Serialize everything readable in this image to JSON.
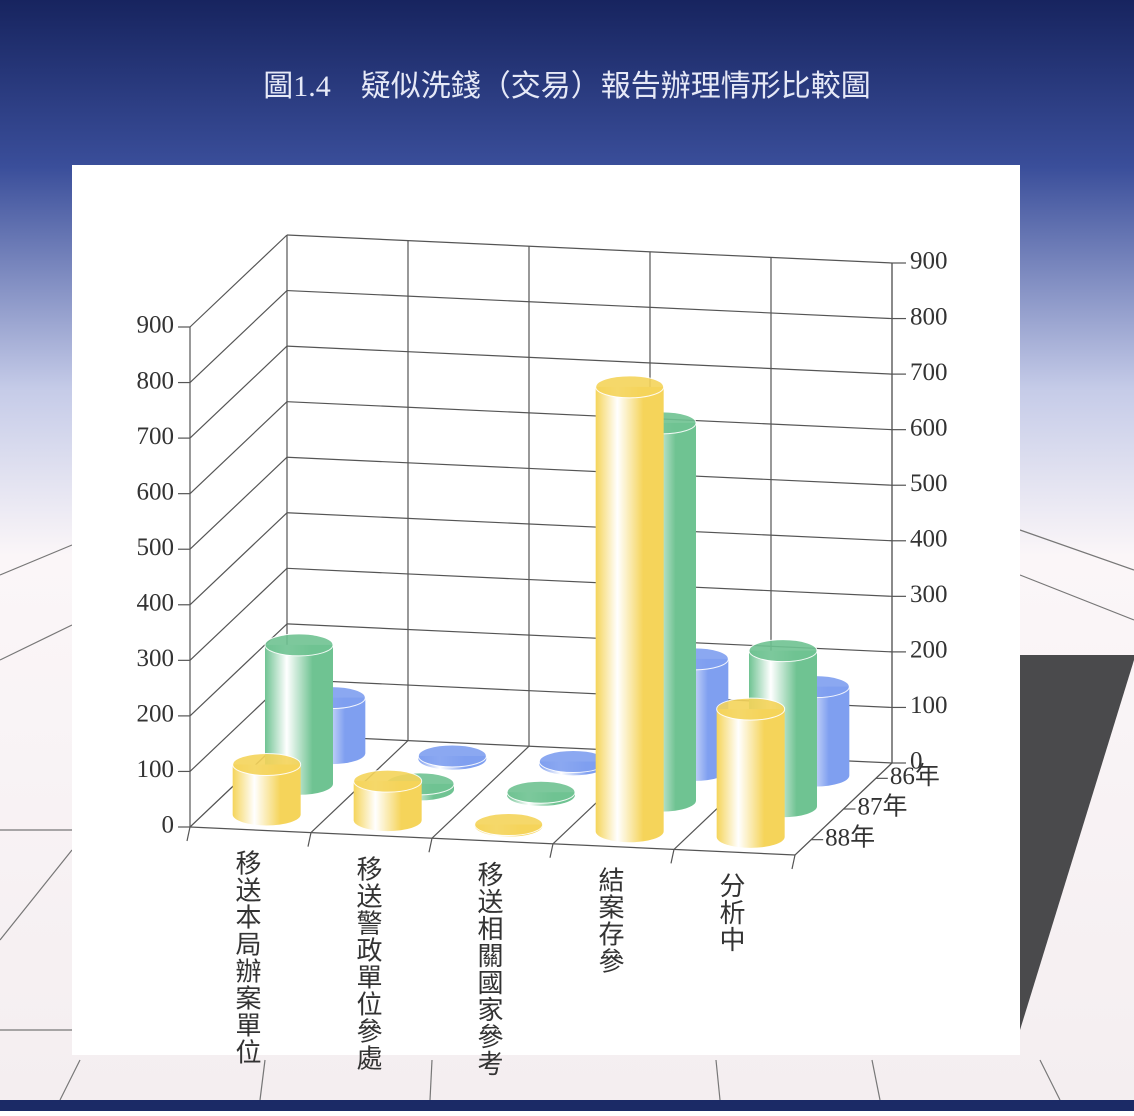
{
  "chart_data": {
    "type": "bar3d",
    "title": "圖1.4　疑似洗錢（交易）報告辦理情形比較圖",
    "categories": [
      "移送本局辦案單位",
      "移送警政單位參處",
      "移送相關國家參考",
      "結案存參",
      "分析中"
    ],
    "series": [
      {
        "name": "86年",
        "color": "#7f9ff0",
        "values": [
          100,
          5,
          5,
          200,
          160
        ]
      },
      {
        "name": "87年",
        "color": "#6fc392",
        "values": [
          250,
          10,
          5,
          680,
          280
        ]
      },
      {
        "name": "88年",
        "color": "#f5d45a",
        "values": [
          90,
          70,
          2,
          800,
          230
        ]
      }
    ],
    "ylim": [
      0,
      900
    ],
    "yticks": [
      0,
      100,
      200,
      300,
      400,
      500,
      600,
      700,
      800,
      900
    ],
    "grid": true
  }
}
